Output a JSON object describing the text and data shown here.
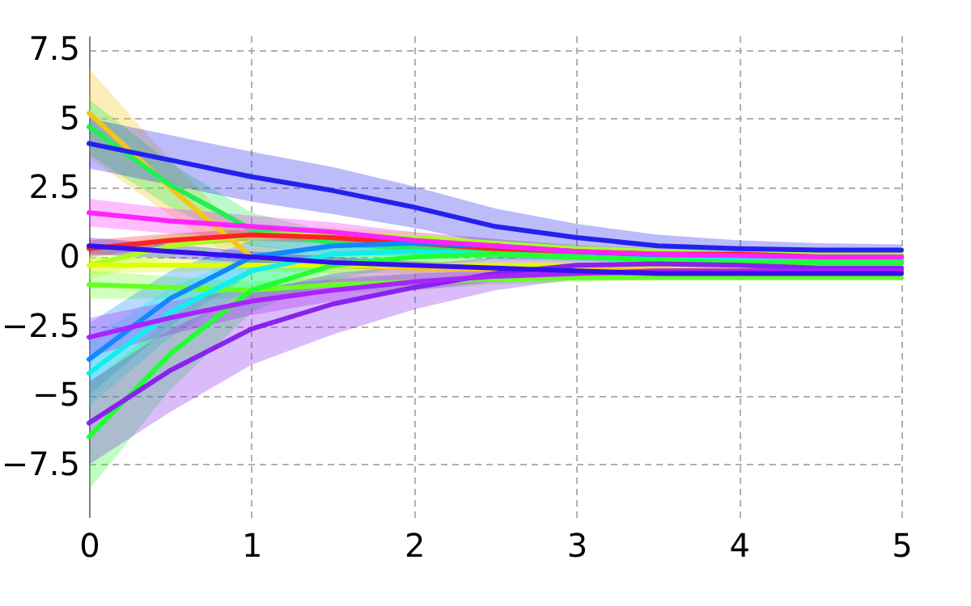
{
  "chart_data": {
    "type": "line",
    "x": [
      0,
      0.5,
      1,
      1.5,
      2,
      2.5,
      3,
      3.5,
      4,
      4.5,
      5
    ],
    "xlim": [
      0,
      5
    ],
    "xticks": [
      0,
      1,
      2,
      3,
      4,
      5
    ],
    "ylim": [
      -9.4,
      8
    ],
    "yticks": [
      -7.5,
      -5,
      -2.5,
      0,
      2.5,
      5,
      7.5
    ],
    "grid": true,
    "legend": false,
    "line_style": "solid",
    "marker": "none",
    "series": [
      {
        "color": "#f5c518",
        "values": [
          5.2,
          2.5,
          0.0,
          -0.3,
          -0.4,
          -0.45,
          -0.4,
          -0.4,
          -0.35,
          -0.35,
          -0.35
        ],
        "lower": [
          3.6,
          1.5,
          -0.5,
          -0.6,
          -0.6,
          -0.65,
          -0.6,
          -0.6,
          -0.6,
          -0.6,
          -0.6
        ],
        "upper": [
          6.8,
          3.5,
          0.5,
          0,
          -0.2,
          -0.35,
          -0.4,
          -0.4,
          -0.4,
          -0.4,
          -0.4
        ]
      },
      {
        "color": "#22ee55",
        "values": [
          4.7,
          2.6,
          1.0,
          0.5,
          0.3,
          0.2,
          0.1,
          0.05,
          0,
          0,
          0
        ],
        "lower": [
          3.7,
          1.8,
          0.4,
          0.1,
          0,
          0,
          -0.05,
          -0.05,
          -0.1,
          -0.1,
          -0.1
        ],
        "upper": [
          5.7,
          3.4,
          1.6,
          0.9,
          0.6,
          0.4,
          0.25,
          0.15,
          0.1,
          0.1,
          0.1
        ]
      },
      {
        "color": "#aaff22",
        "values": [
          -0.3,
          0.4,
          0.8,
          0.8,
          0.7,
          0.5,
          0.3,
          0.2,
          0.1,
          0.1,
          0.1
        ],
        "lower": [
          -0.8,
          0,
          0.5,
          0.55,
          0.5,
          0.35,
          0.15,
          0.1,
          0,
          0,
          0
        ],
        "upper": [
          0.2,
          0.8,
          1.1,
          1.05,
          0.9,
          0.65,
          0.45,
          0.3,
          0.2,
          0.2,
          0.2
        ]
      },
      {
        "color": "#ff2222",
        "values": [
          0.3,
          0.6,
          0.8,
          0.7,
          0.5,
          0.3,
          0.2,
          0.1,
          0.1,
          0,
          0
        ],
        "lower": [
          0,
          0.35,
          0.6,
          0.5,
          0.35,
          0.2,
          0.1,
          0,
          0,
          -0.1,
          -0.1
        ],
        "upper": [
          0.6,
          0.85,
          1.0,
          0.9,
          0.65,
          0.4,
          0.3,
          0.2,
          0.2,
          0.1,
          0.1
        ]
      },
      {
        "color": "#ddff00",
        "values": [
          -0.3,
          -0.3,
          -0.3,
          -0.3,
          -0.3,
          -0.3,
          -0.3,
          -0.3,
          -0.3,
          -0.3,
          -0.3
        ],
        "lower": [
          -0.6,
          -0.55,
          -0.5,
          -0.45,
          -0.45,
          -0.4,
          -0.4,
          -0.4,
          -0.4,
          -0.4,
          -0.4
        ],
        "upper": [
          0,
          -0.05,
          -0.1,
          -0.15,
          -0.15,
          -0.2,
          -0.2,
          -0.2,
          -0.2,
          -0.2,
          -0.2
        ]
      },
      {
        "color": "#66ff22",
        "values": [
          -1.0,
          -1.1,
          -1.2,
          -1.0,
          -0.9,
          -0.8,
          -0.75,
          -0.75,
          -0.75,
          -0.75,
          -0.75
        ],
        "lower": [
          -1.5,
          -1.5,
          -1.5,
          -1.3,
          -1.2,
          -1.0,
          -0.9,
          -0.8,
          -0.75,
          -0.75,
          -0.7
        ],
        "upper": [
          -0.5,
          -0.7,
          -0.9,
          -0.7,
          -0.6,
          -0.6,
          -0.5,
          -0.45,
          -0.45,
          -0.45,
          -0.5
        ]
      },
      {
        "color": "#1188ff",
        "values": [
          -3.7,
          -1.5,
          0,
          0.4,
          0.5,
          0.4,
          0.2,
          0,
          -0.1,
          -0.2,
          -0.2
        ],
        "lower": [
          -5.0,
          -2.5,
          -0.6,
          0.1,
          0.3,
          0.25,
          0.05,
          -0.1,
          -0.2,
          -0.3,
          -0.3
        ],
        "upper": [
          -2.4,
          -0.5,
          0.6,
          0.7,
          0.7,
          0.55,
          0.35,
          0.1,
          0,
          -0.1,
          -0.1
        ]
      },
      {
        "color": "#11eeee",
        "values": [
          -4.2,
          -2.0,
          -0.5,
          0.1,
          0.2,
          0.1,
          0,
          -0.1,
          -0.1,
          -0.1,
          -0.1
        ],
        "lower": [
          -5.4,
          -2.9,
          -1.1,
          -0.2,
          0,
          -0.05,
          -0.1,
          -0.2,
          -0.2,
          -0.2,
          -0.2
        ],
        "upper": [
          -3.0,
          -1.1,
          0.1,
          0.4,
          0.4,
          0.25,
          0.1,
          0,
          0,
          0,
          0
        ]
      },
      {
        "color": "#22ff33",
        "values": [
          -6.5,
          -3.5,
          -1.2,
          -0.3,
          0,
          0.1,
          0,
          -0.1,
          -0.2,
          -0.2,
          -0.2
        ],
        "lower": [
          -8.4,
          -4.8,
          -2.0,
          -0.8,
          -0.3,
          -0.1,
          -0.15,
          -0.25,
          -0.3,
          -0.3,
          -0.3
        ],
        "upper": [
          -4.6,
          -2.2,
          -0.4,
          0.2,
          0.3,
          0.3,
          0.15,
          0.05,
          -0.1,
          -0.1,
          -0.1
        ]
      },
      {
        "color": "#8822ee",
        "values": [
          -6.0,
          -4.1,
          -2.6,
          -1.7,
          -1.1,
          -0.6,
          -0.3,
          -0.25,
          -0.3,
          -0.4,
          -0.4
        ],
        "lower": [
          -7.5,
          -5.6,
          -3.9,
          -2.8,
          -1.9,
          -1.2,
          -0.8,
          -0.6,
          -0.55,
          -0.55,
          -0.55
        ],
        "upper": [
          -4.5,
          -2.6,
          -1.3,
          -0.6,
          -0.3,
          0,
          0.2,
          0.1,
          -0.05,
          -0.25,
          -0.25
        ]
      },
      {
        "color": "#aa22ff",
        "values": [
          -2.9,
          -2.2,
          -1.6,
          -1.2,
          -0.9,
          -0.7,
          -0.6,
          -0.5,
          -0.5,
          -0.5,
          -0.5
        ],
        "lower": [
          -3.6,
          -2.8,
          -2.1,
          -1.6,
          -1.2,
          -0.9,
          -0.75,
          -0.65,
          -0.6,
          -0.6,
          -0.6
        ],
        "upper": [
          -2.2,
          -1.6,
          -1.1,
          -0.8,
          -0.6,
          -0.5,
          -0.45,
          -0.35,
          -0.4,
          -0.4,
          -0.4
        ]
      },
      {
        "color": "#3311ee",
        "values": [
          0.4,
          0.2,
          0,
          -0.2,
          -0.3,
          -0.4,
          -0.5,
          -0.6,
          -0.6,
          -0.6,
          -0.6
        ],
        "lower": [
          0.1,
          -0.05,
          -0.2,
          -0.4,
          -0.45,
          -0.55,
          -0.65,
          -0.7,
          -0.7,
          -0.7,
          -0.7
        ],
        "upper": [
          0.7,
          0.45,
          0.2,
          0,
          -0.15,
          -0.25,
          -0.35,
          -0.5,
          -0.5,
          -0.5,
          -0.5
        ]
      },
      {
        "color": "#ff22ff",
        "values": [
          1.6,
          1.3,
          1.1,
          0.9,
          0.6,
          0.4,
          0.2,
          0.1,
          0.05,
          0,
          0
        ],
        "lower": [
          1.1,
          0.85,
          0.7,
          0.55,
          0.3,
          0.15,
          0,
          -0.05,
          -0.05,
          -0.1,
          -0.1
        ],
        "upper": [
          2.1,
          1.75,
          1.5,
          1.25,
          0.9,
          0.65,
          0.4,
          0.25,
          0.15,
          0.1,
          0.1
        ]
      },
      {
        "color": "#2222ee",
        "values": [
          4.1,
          3.5,
          2.9,
          2.4,
          1.8,
          1.1,
          0.7,
          0.4,
          0.3,
          0.25,
          0.25
        ],
        "lower": [
          3.2,
          2.6,
          2.0,
          1.55,
          1.05,
          0.45,
          0.2,
          0.0,
          0.0,
          0.0,
          0.05
        ],
        "upper": [
          5.0,
          4.4,
          3.8,
          3.25,
          2.55,
          1.75,
          1.2,
          0.8,
          0.6,
          0.5,
          0.45
        ]
      }
    ]
  }
}
